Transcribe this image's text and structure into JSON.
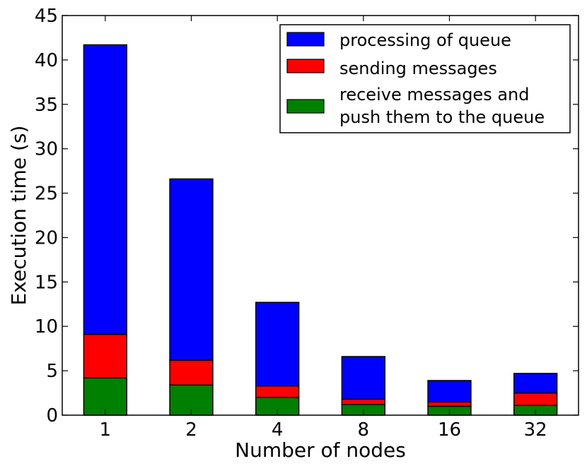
{
  "chart_data": {
    "type": "bar",
    "stacked": true,
    "categories": [
      "1",
      "2",
      "4",
      "8",
      "16",
      "32"
    ],
    "series": [
      {
        "name": "receive messages and push them to the queue",
        "color": "#008000",
        "values": [
          4.2,
          3.4,
          2.0,
          1.2,
          1.0,
          1.1
        ]
      },
      {
        "name": "sending messages",
        "color": "#ff0000",
        "values": [
          4.9,
          2.8,
          1.3,
          0.6,
          0.5,
          1.4
        ]
      },
      {
        "name": "processing of queue",
        "color": "#0000ff",
        "values": [
          32.6,
          20.4,
          9.4,
          4.8,
          2.4,
          2.2
        ]
      }
    ],
    "title": "",
    "xlabel": "Number of nodes",
    "ylabel": "Execution time (s)",
    "ylim": [
      0,
      45
    ],
    "yticks": [
      0,
      5,
      10,
      15,
      20,
      25,
      30,
      35,
      40,
      45
    ],
    "grid": false,
    "legend": {
      "placement": "top-right",
      "entries": [
        {
          "lines": [
            "processing of queue"
          ],
          "color": "#0000ff"
        },
        {
          "lines": [
            "sending messages"
          ],
          "color": "#ff0000"
        },
        {
          "lines": [
            "receive messages and",
            "push them to the queue"
          ],
          "color": "#008000"
        }
      ]
    }
  }
}
